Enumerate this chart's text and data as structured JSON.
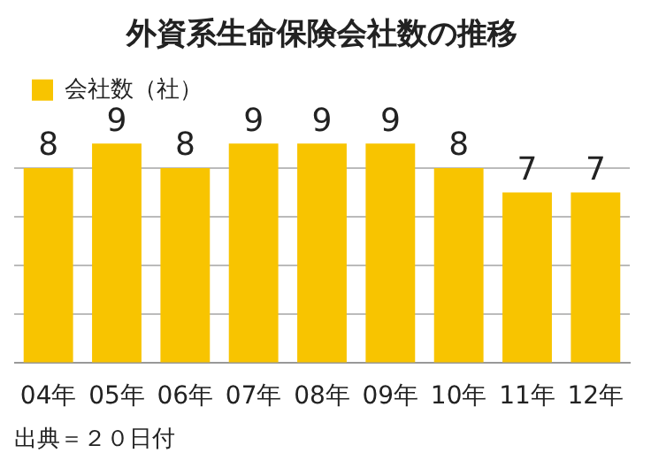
{
  "chart_data": {
    "type": "bar",
    "title": "外資系生命保険会社数の推移",
    "categories": [
      "04年",
      "05年",
      "06年",
      "07年",
      "08年",
      "09年",
      "10年",
      "11年",
      "12年"
    ],
    "series": [
      {
        "name": "会社数（社）",
        "color": "#f8c400",
        "values": [
          8,
          9,
          8,
          9,
          9,
          9,
          8,
          7,
          7
        ]
      }
    ],
    "yticks": [
      {
        "value": 0,
        "label": null
      },
      {
        "value": 2,
        "label": null
      },
      {
        "value": 4,
        "label": null
      },
      {
        "value": 6,
        "label": null
      },
      {
        "value": 8,
        "label": null
      }
    ],
    "tick_labels": "x",
    "grid": "y",
    "legend": "top left",
    "data_labels": true,
    "annotations": [
      "出典＝２０日付"
    ]
  }
}
